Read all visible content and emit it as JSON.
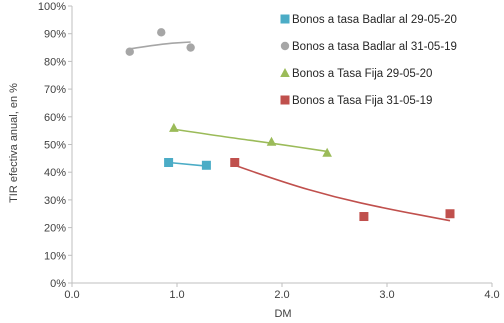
{
  "chart_data": {
    "type": "scatter",
    "xlabel": "DM",
    "ylabel": "TIR efectiva anual, en %",
    "xlim": [
      0,
      4
    ],
    "ylim": [
      0,
      100
    ],
    "x_ticks": [
      "0.0",
      "1.0",
      "2.0",
      "3.0",
      "4.0"
    ],
    "y_ticks": [
      "0%",
      "10%",
      "20%",
      "30%",
      "40%",
      "50%",
      "60%",
      "70%",
      "80%",
      "90%",
      "100%"
    ],
    "grid": "none",
    "legend_position": "top-right",
    "series": [
      {
        "name": "Bonos a tasa Badlar al 29-05-20",
        "marker": "square",
        "color": "#4bacc6",
        "points": [
          [
            0.92,
            43.5
          ],
          [
            1.28,
            42.5
          ]
        ],
        "trendline": [
          [
            0.92,
            43.5
          ],
          [
            1.28,
            42.2
          ]
        ]
      },
      {
        "name": "Bonos a tasa Badlar al 31-05-19",
        "marker": "circle",
        "color": "#a6a6a6",
        "points": [
          [
            0.55,
            83.5
          ],
          [
            0.85,
            90.5
          ],
          [
            1.13,
            85.0
          ]
        ],
        "trendline": [
          [
            0.55,
            84.5
          ],
          [
            0.85,
            86.3
          ],
          [
            1.13,
            87.0
          ]
        ]
      },
      {
        "name": "Bonos a Tasa Fija 29-05-20",
        "marker": "triangle",
        "color": "#9bbb59",
        "points": [
          [
            0.97,
            56.0
          ],
          [
            1.9,
            51.0
          ],
          [
            2.43,
            47.0
          ]
        ],
        "trendline": [
          [
            0.97,
            55.5
          ],
          [
            1.5,
            52.5
          ],
          [
            1.9,
            50.5
          ],
          [
            2.43,
            47.5
          ]
        ]
      },
      {
        "name": "Bonos a Tasa Fija 31-05-19",
        "marker": "square",
        "color": "#c0504d",
        "points": [
          [
            1.55,
            43.5
          ],
          [
            2.78,
            24.0
          ],
          [
            3.6,
            25.0
          ]
        ],
        "trendline": [
          [
            1.55,
            42.5
          ],
          [
            2.0,
            36.5
          ],
          [
            2.5,
            31.0
          ],
          [
            3.0,
            26.8
          ],
          [
            3.6,
            22.5
          ]
        ]
      }
    ]
  }
}
